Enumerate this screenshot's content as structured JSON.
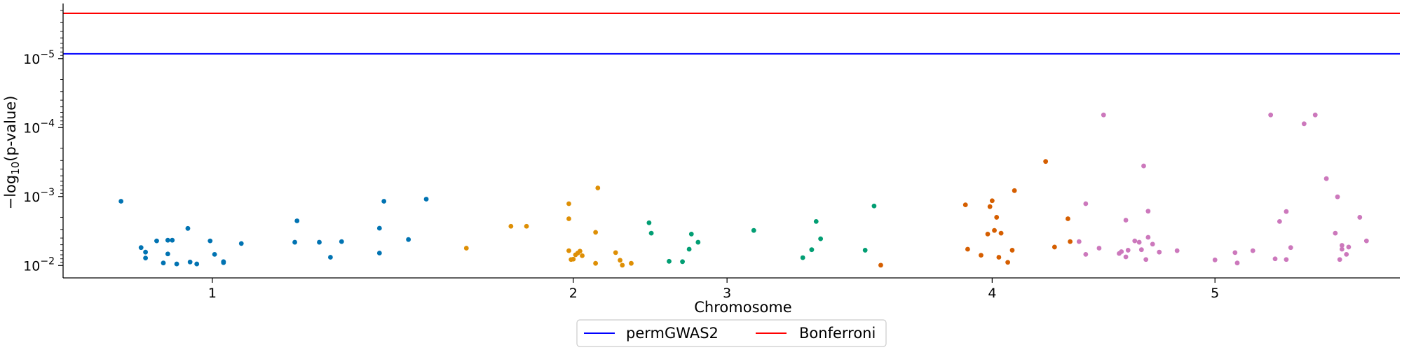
{
  "chart_data": {
    "type": "scatter",
    "title": "",
    "xlabel": "Chromosome",
    "ylabel_prefix": "−log",
    "ylabel_sub": "10",
    "ylabel_suffix": "(p-value)",
    "xlim": [
      0.33,
      6.33
    ],
    "ylim_log10_p": [
      -1.82,
      -5.8
    ],
    "y_scale": "log (inverted: smaller p-value plotted higher)",
    "x_ticks": [
      {
        "value": 1.0,
        "label": "1"
      },
      {
        "value": 2.62,
        "label": "2"
      },
      {
        "value": 3.31,
        "label": "3"
      },
      {
        "value": 4.5,
        "label": "4"
      },
      {
        "value": 5.5,
        "label": "5"
      }
    ],
    "y_ticks": [
      {
        "p": 0.01,
        "base": "10",
        "exp": "−2"
      },
      {
        "p": 0.001,
        "base": "10",
        "exp": "−3"
      },
      {
        "p": 0.0001,
        "base": "10",
        "exp": "−4"
      },
      {
        "p": 1e-05,
        "base": "10",
        "exp": "−5"
      }
    ],
    "grid": false,
    "legend_placement": "bottom-center (below axes)",
    "thresholds": [
      {
        "name": "permGWAS2",
        "p": 8.5e-06,
        "color": "#0000ff"
      },
      {
        "name": "Bonferroni",
        "p": 2.2e-06,
        "color": "#ff0000"
      }
    ],
    "series": [
      {
        "chromosome": "1",
        "color": "#0173b2",
        "points": [
          [
            0.59,
            0.00117
          ],
          [
            0.68,
            0.0055
          ],
          [
            0.7,
            0.0078
          ],
          [
            0.7,
            0.0064
          ],
          [
            0.75,
            0.0044
          ],
          [
            0.78,
            0.0092
          ],
          [
            0.8,
            0.0068
          ],
          [
            0.8,
            0.0043
          ],
          [
            0.82,
            0.0043
          ],
          [
            0.84,
            0.0095
          ],
          [
            0.89,
            0.0029
          ],
          [
            0.9,
            0.0089
          ],
          [
            0.93,
            0.0095
          ],
          [
            0.99,
            0.0044
          ],
          [
            1.01,
            0.0069
          ],
          [
            1.05,
            0.0088
          ],
          [
            1.05,
            0.0091
          ],
          [
            1.13,
            0.0048
          ],
          [
            1.37,
            0.0046
          ],
          [
            1.38,
            0.00225
          ],
          [
            1.48,
            0.0046
          ],
          [
            1.53,
            0.0076
          ],
          [
            1.58,
            0.0045
          ],
          [
            1.75,
            0.0066
          ],
          [
            1.75,
            0.00288
          ],
          [
            1.77,
            0.00117
          ],
          [
            1.88,
            0.0042
          ],
          [
            1.96,
            0.00109
          ]
        ]
      },
      {
        "chromosome": "2",
        "color": "#de8f05",
        "points": [
          [
            2.14,
            0.0056
          ],
          [
            2.34,
            0.0027
          ],
          [
            2.41,
            0.0027
          ],
          [
            2.6,
            0.00127
          ],
          [
            2.6,
            0.0021
          ],
          [
            2.6,
            0.0061
          ],
          [
            2.61,
            0.0082
          ],
          [
            2.62,
            0.0081
          ],
          [
            2.63,
            0.007
          ],
          [
            2.64,
            0.0066
          ],
          [
            2.65,
            0.0062
          ],
          [
            2.66,
            0.0072
          ],
          [
            2.72,
            0.0033
          ],
          [
            2.72,
            0.0093
          ],
          [
            2.73,
            0.00075
          ],
          [
            2.81,
            0.0065
          ],
          [
            2.83,
            0.0084
          ],
          [
            2.84,
            0.0099
          ],
          [
            2.88,
            0.0093
          ]
        ]
      },
      {
        "chromosome": "3",
        "color": "#029e73",
        "points": [
          [
            2.96,
            0.0024
          ],
          [
            2.97,
            0.0034
          ],
          [
            3.05,
            0.0087
          ],
          [
            3.11,
            0.0088
          ],
          [
            3.14,
            0.0058
          ],
          [
            3.15,
            0.0035
          ],
          [
            3.18,
            0.0046
          ],
          [
            3.43,
            0.0031
          ],
          [
            3.65,
            0.0077
          ],
          [
            3.69,
            0.0059
          ],
          [
            3.71,
            0.0023
          ],
          [
            3.73,
            0.0041
          ],
          [
            3.93,
            0.006
          ],
          [
            3.97,
            0.00137
          ]
        ]
      },
      {
        "chromosome": "4",
        "color": "#d55e00",
        "points": [
          [
            4.0,
            0.0099
          ],
          [
            4.38,
            0.00132
          ],
          [
            4.39,
            0.0058
          ],
          [
            4.45,
            0.0071
          ],
          [
            4.48,
            0.0035
          ],
          [
            4.49,
            0.0014
          ],
          [
            4.5,
            0.00115
          ],
          [
            4.51,
            0.0031
          ],
          [
            4.52,
            0.002
          ],
          [
            4.53,
            0.0076
          ],
          [
            4.54,
            0.0034
          ],
          [
            4.57,
            0.009
          ],
          [
            4.59,
            0.006
          ],
          [
            4.6,
            0.00082
          ],
          [
            4.74,
            0.00031
          ],
          [
            4.78,
            0.0054
          ],
          [
            4.84,
            0.0021
          ],
          [
            4.85,
            0.0045
          ]
        ]
      },
      {
        "chromosome": "5",
        "color": "#cc78bc",
        "points": [
          [
            4.89,
            0.0045
          ],
          [
            4.92,
            0.00127
          ],
          [
            4.92,
            0.0069
          ],
          [
            4.98,
            0.0056
          ],
          [
            5.0,
            6.55e-05
          ],
          [
            5.07,
            0.0067
          ],
          [
            5.08,
            0.0063
          ],
          [
            5.1,
            0.0075
          ],
          [
            5.1,
            0.0022
          ],
          [
            5.11,
            0.006
          ],
          [
            5.14,
            0.0044
          ],
          [
            5.16,
            0.0046
          ],
          [
            5.17,
            0.0059
          ],
          [
            5.18,
            0.00036
          ],
          [
            5.19,
            0.0082
          ],
          [
            5.2,
            0.0039
          ],
          [
            5.2,
            0.00163
          ],
          [
            5.22,
            0.0049
          ],
          [
            5.25,
            0.0064
          ],
          [
            5.33,
            0.0061
          ],
          [
            5.5,
            0.0083
          ],
          [
            5.59,
            0.0065
          ],
          [
            5.6,
            0.0092
          ],
          [
            5.67,
            0.0061
          ],
          [
            5.75,
            6.55e-05
          ],
          [
            5.77,
            0.008
          ],
          [
            5.79,
            0.0023
          ],
          [
            5.82,
            0.00165
          ],
          [
            5.82,
            0.0082
          ],
          [
            5.84,
            0.0055
          ],
          [
            5.9,
            8.8e-05
          ],
          [
            5.95,
            6.55e-05
          ],
          [
            6.0,
            0.00055
          ],
          [
            6.04,
            0.0034
          ],
          [
            6.05,
            0.00101
          ],
          [
            6.06,
            0.0082
          ],
          [
            6.07,
            0.0051
          ],
          [
            6.07,
            0.0058
          ],
          [
            6.09,
            0.0069
          ],
          [
            6.1,
            0.0054
          ],
          [
            6.15,
            0.002
          ],
          [
            6.18,
            0.0044
          ]
        ]
      }
    ]
  }
}
